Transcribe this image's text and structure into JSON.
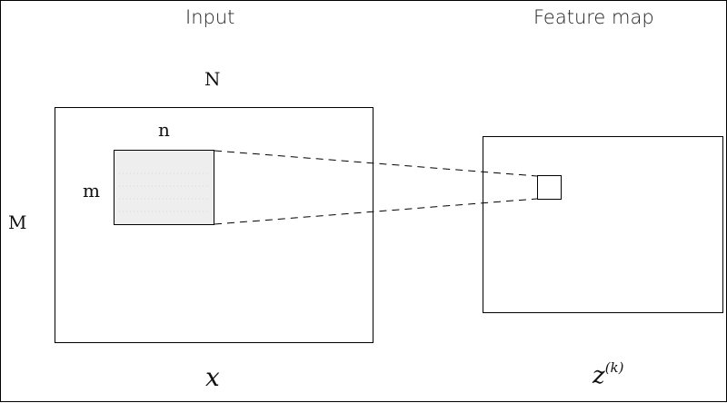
{
  "labels": {
    "input_title": "Input",
    "feature_map_title": "Feature map",
    "width_big": "N",
    "height_big": "M",
    "width_small": "n",
    "height_small": "m",
    "input_symbol": "x",
    "output_symbol_base": "z",
    "output_symbol_superscript": "(k)"
  },
  "colors": {
    "outline": "#000000",
    "patch_fill": "#eeeeee"
  }
}
